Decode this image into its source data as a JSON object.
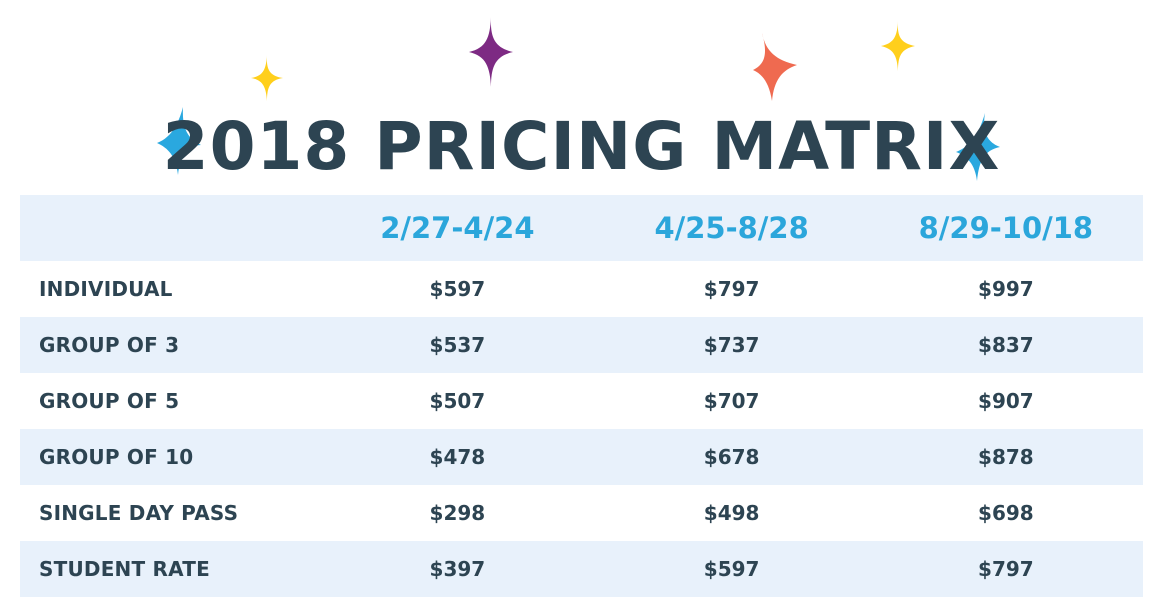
{
  "title": "2018 PRICING MATRIX",
  "colors": {
    "title": "#2d4452",
    "header_text": "#2ba6db",
    "band": "#e8f1fb",
    "sparkle_yellow": "#ffcf1c",
    "sparkle_purple": "#7d2a83",
    "sparkle_coral": "#ef6a50",
    "sparkle_blue": "#2aa8df"
  },
  "table": {
    "columns": [
      "",
      "2/27-4/24",
      "4/25-8/28",
      "8/29-10/18"
    ],
    "rows": [
      {
        "label": "INDIVIDUAL",
        "prices": [
          "$597",
          "$797",
          "$997"
        ]
      },
      {
        "label": "GROUP OF 3",
        "prices": [
          "$537",
          "$737",
          "$837"
        ]
      },
      {
        "label": "GROUP OF 5",
        "prices": [
          "$507",
          "$707",
          "$907"
        ]
      },
      {
        "label": "GROUP OF 10",
        "prices": [
          "$478",
          "$678",
          "$878"
        ]
      },
      {
        "label": "SINGLE DAY PASS",
        "prices": [
          "$298",
          "$498",
          "$698"
        ]
      },
      {
        "label": "STUDENT RATE",
        "prices": [
          "$397",
          "$597",
          "$797"
        ]
      }
    ]
  },
  "sparkles": [
    "sparkle-yellow-icon",
    "sparkle-purple-icon",
    "sparkle-coral-icon",
    "sparkle-yellow-icon",
    "sparkle-blue-icon",
    "sparkle-blue-icon"
  ]
}
